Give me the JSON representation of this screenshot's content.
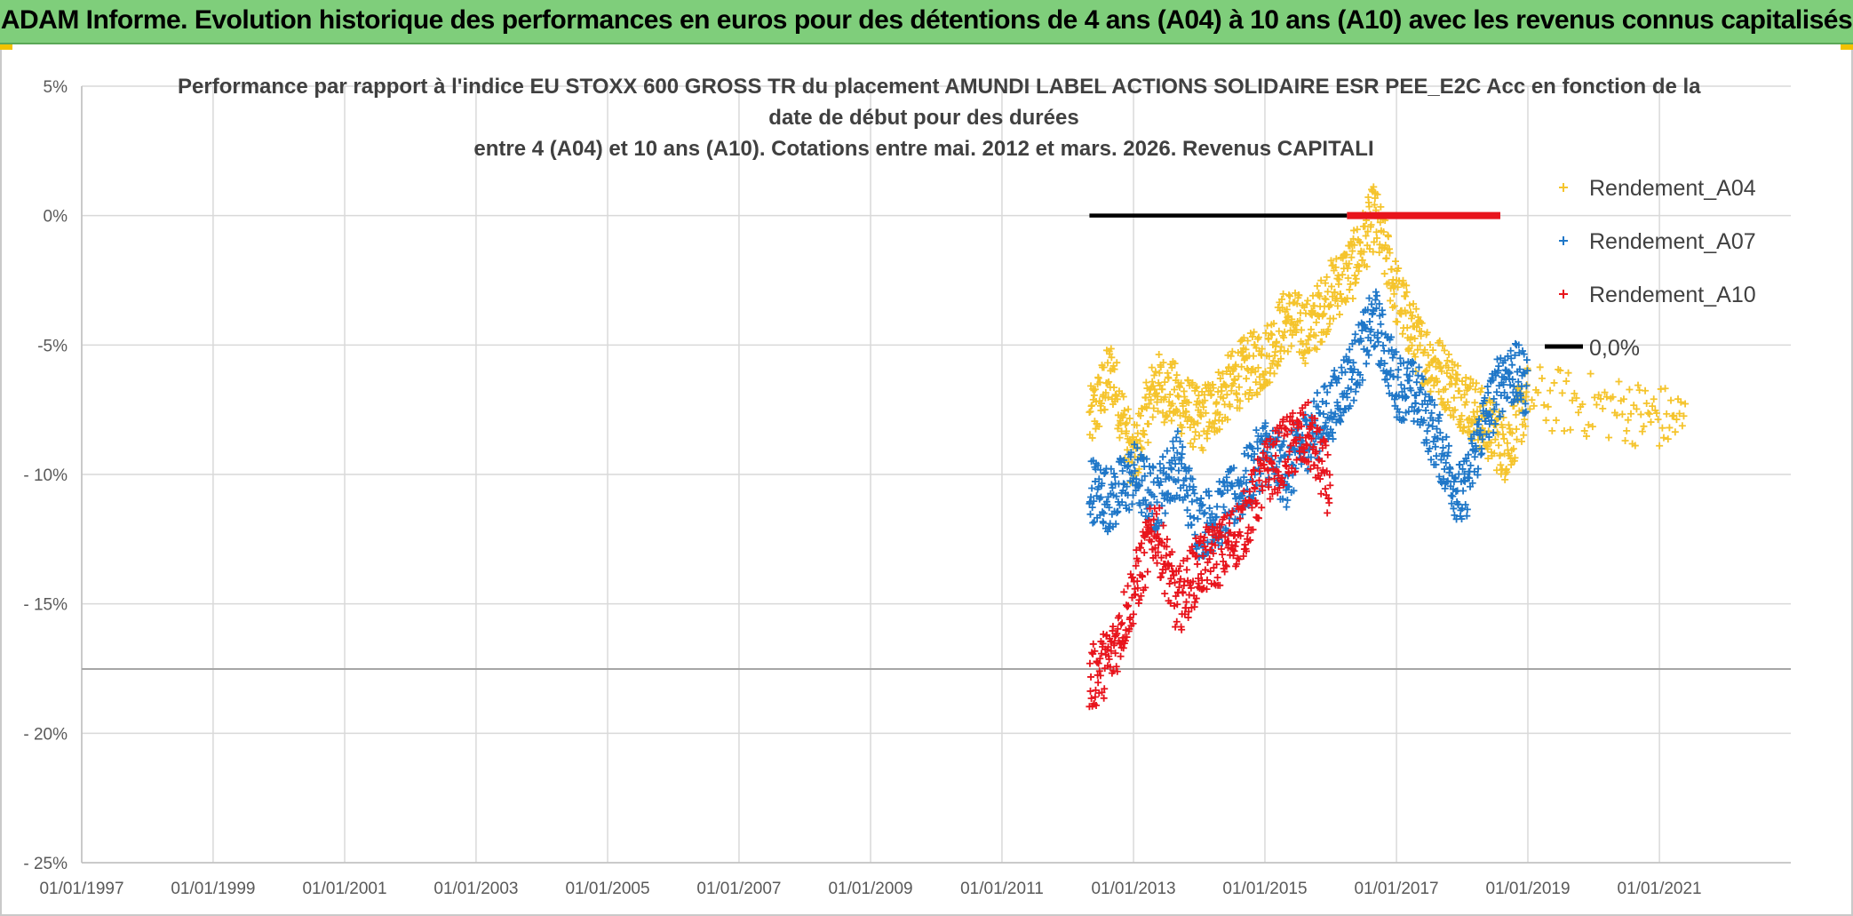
{
  "banner": {
    "text": "ADAM Informe. Evolution historique des performances en euros pour des détentions de 4 ans (A04) à 10 ans (A10) avec les revenus connus capitalisés"
  },
  "colors": {
    "banner_bg": "#7fce7b",
    "series_a04": "#f5c42c",
    "series_a07": "#1f77c8",
    "series_a10": "#e8141c",
    "zero_line": "#000000"
  },
  "chart_data": {
    "type": "scatter",
    "title_lines": [
      "Performance par rapport à l'indice EU STOXX 600 GROSS TR  du placement AMUNDI LABEL ACTIONS SOLIDAIRE ESR PEE_E2C Acc en fonction de la",
      "date de début pour des durées",
      "entre 4 (A04) et 10 ans (A10). Cotations entre mai. 2012 et mars. 2026. Revenus CAPITALI"
    ],
    "x_axis": {
      "type": "date",
      "range": [
        "1997-01-01",
        "2023-01-01"
      ],
      "tick_labels": [
        "01/01/1997",
        "01/01/1999",
        "01/01/2001",
        "01/01/2003",
        "01/01/2005",
        "01/01/2007",
        "01/01/2009",
        "01/01/2011",
        "01/01/2013",
        "01/01/2015",
        "01/01/2017",
        "01/01/2019",
        "01/01/2021"
      ]
    },
    "y_axis": {
      "range": [
        -25,
        5
      ],
      "unit": "%",
      "tick_values": [
        5,
        0,
        -5,
        -10,
        -15,
        -20,
        -25
      ],
      "tick_labels": [
        "5%",
        "0%",
        "-5%",
        "- 10%",
        "- 15%",
        "- 20%",
        "- 25%"
      ]
    },
    "grid": true,
    "legend_position": "top-right",
    "series": [
      {
        "name": "Rendement_A04",
        "marker": "plus",
        "points": [
          [
            "2012-05-01",
            -8
          ],
          [
            "2012-09-01",
            -6
          ],
          [
            "2013-01-01",
            -9.5
          ],
          [
            "2013-05-01",
            -6.5
          ],
          [
            "2013-09-01",
            -7
          ],
          [
            "2014-01-01",
            -8
          ],
          [
            "2014-05-01",
            -7
          ],
          [
            "2014-09-01",
            -6
          ],
          [
            "2015-01-01",
            -5.5
          ],
          [
            "2015-05-01",
            -4
          ],
          [
            "2015-09-01",
            -4.5
          ],
          [
            "2016-01-01",
            -3
          ],
          [
            "2016-05-01",
            -2
          ],
          [
            "2016-09-01",
            0
          ],
          [
            "2017-01-01",
            -3
          ],
          [
            "2017-05-01",
            -5
          ],
          [
            "2017-09-01",
            -6
          ],
          [
            "2018-01-01",
            -7
          ],
          [
            "2018-05-01",
            -8
          ],
          [
            "2018-09-01",
            -9
          ],
          [
            "2019-01-01",
            -7
          ],
          [
            "2020-06-01",
            -7.5
          ],
          [
            "2021-06-01",
            -8
          ]
        ]
      },
      {
        "name": "Rendement_A07",
        "marker": "plus",
        "points": [
          [
            "2012-05-01",
            -10.5
          ],
          [
            "2012-09-01",
            -11
          ],
          [
            "2013-01-01",
            -10
          ],
          [
            "2013-05-01",
            -11
          ],
          [
            "2013-09-01",
            -9.5
          ],
          [
            "2014-01-01",
            -12
          ],
          [
            "2014-05-01",
            -11.5
          ],
          [
            "2014-09-01",
            -10.5
          ],
          [
            "2015-01-01",
            -9
          ],
          [
            "2015-05-01",
            -10
          ],
          [
            "2015-09-01",
            -8.5
          ],
          [
            "2016-01-01",
            -7.5
          ],
          [
            "2016-05-01",
            -6
          ],
          [
            "2016-09-01",
            -4
          ],
          [
            "2017-01-01",
            -6.5
          ],
          [
            "2017-05-01",
            -7
          ],
          [
            "2017-09-01",
            -9
          ],
          [
            "2018-01-01",
            -11
          ],
          [
            "2018-05-01",
            -8
          ],
          [
            "2018-09-01",
            -6
          ],
          [
            "2019-01-01",
            -6.5
          ]
        ]
      },
      {
        "name": "Rendement_A10",
        "marker": "plus",
        "points": [
          [
            "2012-05-01",
            -18
          ],
          [
            "2012-09-01",
            -17
          ],
          [
            "2013-01-01",
            -14.5
          ],
          [
            "2013-05-01",
            -12
          ],
          [
            "2013-09-01",
            -15
          ],
          [
            "2014-01-01",
            -13.5
          ],
          [
            "2014-05-01",
            -13
          ],
          [
            "2014-09-01",
            -12
          ],
          [
            "2015-01-01",
            -10
          ],
          [
            "2015-05-01",
            -9
          ],
          [
            "2015-09-01",
            -8.5
          ],
          [
            "2016-01-01",
            -10.5
          ]
        ]
      },
      {
        "name": "0,0%",
        "type": "line",
        "points": [
          [
            "2012-05-01",
            0
          ],
          [
            "2016-04-01",
            0
          ]
        ]
      }
    ]
  }
}
